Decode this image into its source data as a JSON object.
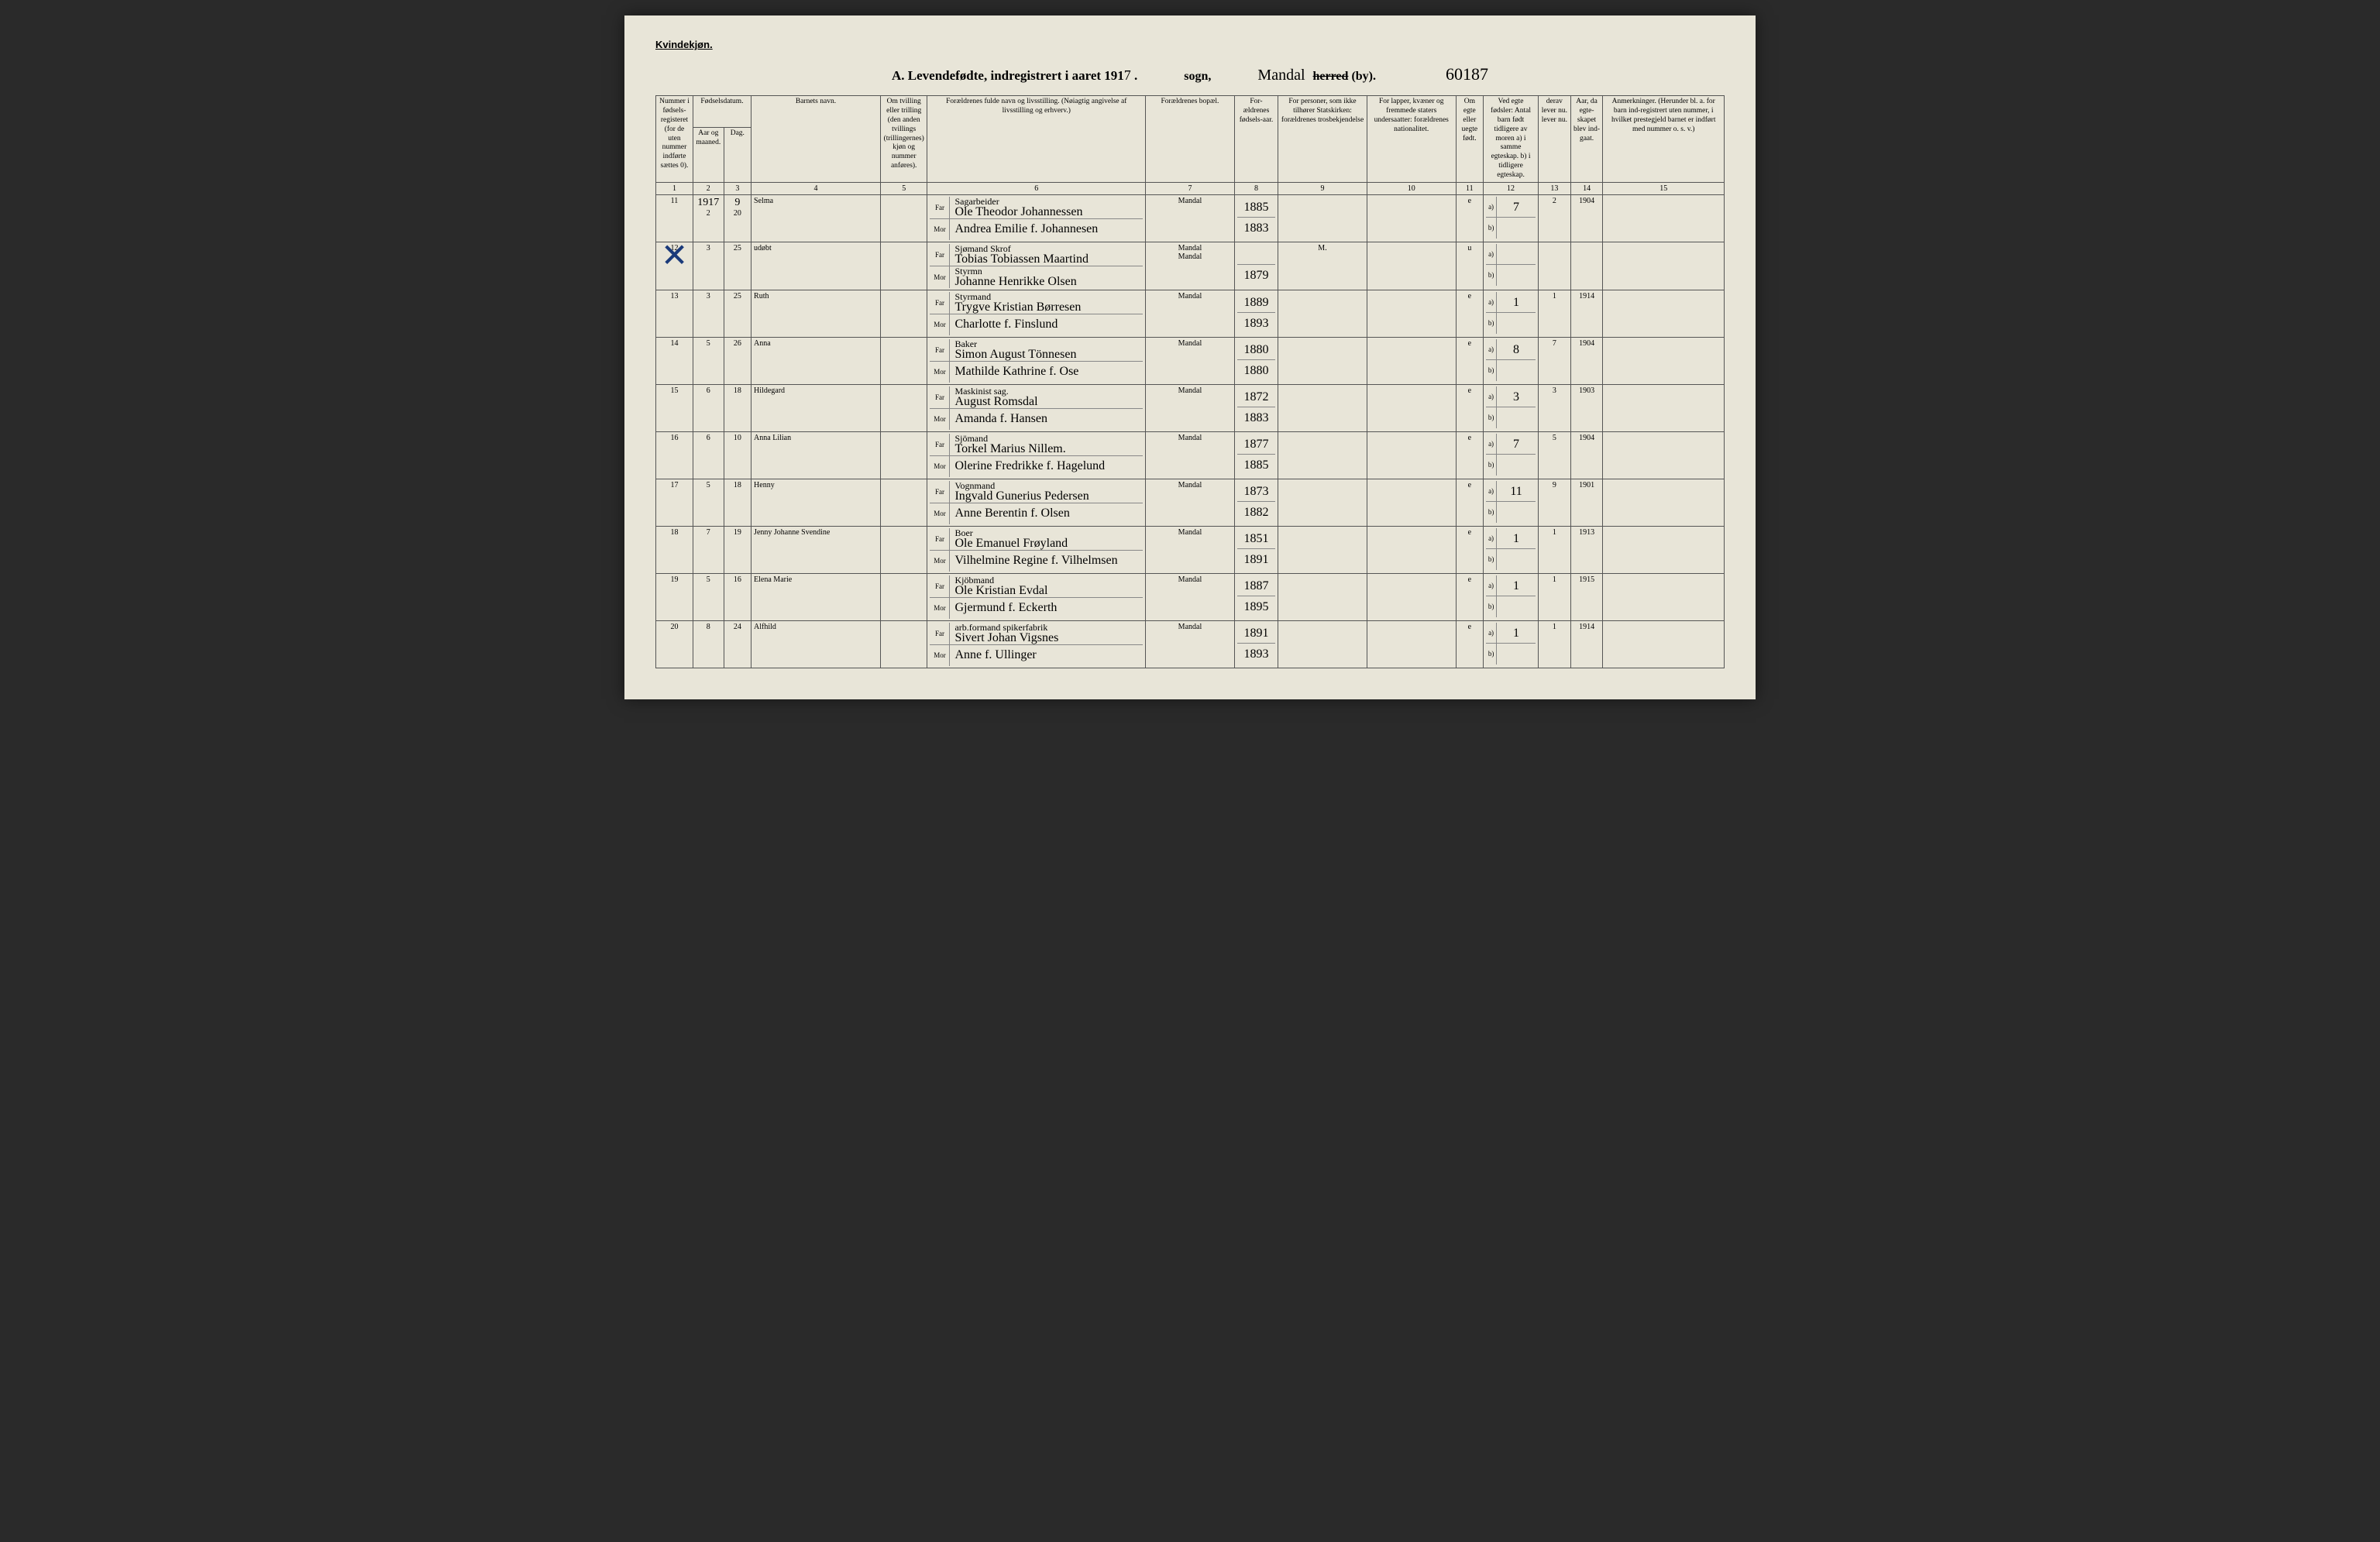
{
  "header": {
    "gender": "Kvindekjøn.",
    "title_prefix": "A.  Levendefødte, indregistrert i aaret 191",
    "title_year_suffix": "7",
    "sogn_label": "sogn,",
    "herred_handwritten": "Mandal",
    "herred_label_struck": "herred",
    "herred_label_rest": " (by).",
    "page_number": "60187"
  },
  "columns": {
    "c1": "Nummer i fødsels-registeret (for de uten nummer indførte sættes 0).",
    "c2_top": "Fødselsdatum.",
    "c2": "Aar og maaned.",
    "c3": "Dag.",
    "c4": "Barnets navn.",
    "c5": "Om tvilling eller trilling (den anden tvillings (trillingernes) kjøn og nummer anføres).",
    "c6": "Forældrenes fulde navn og livsstilling. (Nøiagtig angivelse af livsstilling og erhverv.)",
    "c7": "Forældrenes bopæl.",
    "c8": "For-ældrenes fødsels-aar.",
    "c9": "For personer, som ikke tilhører Statskirken: forældrenes trosbekjendelse",
    "c10": "For lapper, kvæner og fremmede staters undersaatter: forældrenes nationalitet.",
    "c11": "Om egte eller uegte født.",
    "c12": "Ved egte fødsler: Antal barn født tidligere av moren  a) i samme egteskap.  b) i tidligere egteskap.",
    "c13": "derav lever nu.  lever nu.",
    "c14": "Aar, da egte-skapet blev ind-gaat.",
    "c15": "Anmerkninger. (Herunder bl. a. for barn ind-registrert uten nummer, i hvilket prestegjeld barnet er indført med nummer o. s. v.)",
    "far": "Far",
    "mor": "Mor",
    "a": "a)",
    "b": "b)"
  },
  "colnums": [
    "1",
    "2",
    "3",
    "4",
    "5",
    "6",
    "7",
    "8",
    "9",
    "10",
    "11",
    "12",
    "13",
    "14",
    "15"
  ],
  "rows": [
    {
      "num": "11",
      "year_top": "1917",
      "month": "2",
      "day_top": "9",
      "day": "20",
      "name": "Selma",
      "twin": "",
      "far_occ": "Sagarbeider",
      "far_name": "Ole Theodor Johannessen",
      "mor_name": "Andrea Emilie f. Johannesen",
      "bopael": "Mandal",
      "far_year": "1885",
      "mor_year": "1883",
      "stat": "",
      "nat": "",
      "egte": "e",
      "antal_a": "7",
      "derav": "2",
      "aar14": "1904",
      "anm": ""
    },
    {
      "num": "12",
      "month": "3",
      "day": "25",
      "name": "udøbt",
      "twin": "",
      "far_occ": "Sjømand Skrof",
      "far_name": "Tobias Tobiassen Maartind",
      "mor_occ": "Styrmn",
      "mor_name": "Johanne Henrikke Olsen",
      "bopael": "Mandal",
      "bopael2": "Mandal",
      "far_year": "",
      "mor_year": "1879",
      "stat": "M.",
      "nat": "",
      "egte": "u",
      "antal_a": "",
      "derav": "",
      "aar14": "",
      "anm": "",
      "cross": true
    },
    {
      "num": "13",
      "month": "3",
      "day": "25",
      "name": "Ruth",
      "twin": "",
      "far_occ": "Styrmand",
      "far_name": "Trygve Kristian Børresen",
      "mor_name": "Charlotte f. Finslund",
      "bopael": "Mandal",
      "far_year": "1889",
      "mor_year": "1893",
      "stat": "",
      "nat": "",
      "egte": "e",
      "antal_a": "1",
      "derav": "1",
      "aar14": "1914",
      "anm": ""
    },
    {
      "num": "14",
      "month": "5",
      "day": "26",
      "name": "Anna",
      "twin": "",
      "far_occ": "Baker",
      "far_name": "Simon August Tönnesen",
      "mor_name": "Mathilde Kathrine f. Ose",
      "bopael": "Mandal",
      "far_year": "1880",
      "mor_year": "1880",
      "stat": "",
      "nat": "",
      "egte": "e",
      "antal_a": "8",
      "derav": "7",
      "aar14": "1904",
      "anm": ""
    },
    {
      "num": "15",
      "month": "6",
      "day": "18",
      "name": "Hildegard",
      "twin": "",
      "far_occ": "Maskinist sag.",
      "far_name": "August Romsdal",
      "mor_name": "Amanda f. Hansen",
      "bopael": "Mandal",
      "far_year": "1872",
      "mor_year": "1883",
      "stat": "",
      "nat": "",
      "egte": "e",
      "antal_a": "3",
      "derav": "3",
      "aar14": "1903",
      "anm": ""
    },
    {
      "num": "16",
      "month": "6",
      "day": "10",
      "name": "Anna Lilian",
      "twin": "",
      "far_occ": "Sjömand",
      "far_name": "Torkel Marius Nillem.",
      "mor_name": "Olerine Fredrikke f. Hagelund",
      "bopael": "Mandal",
      "far_year": "1877",
      "mor_year": "1885",
      "stat": "",
      "nat": "",
      "egte": "e",
      "antal_a": "7",
      "derav": "5",
      "aar14": "1904",
      "anm": ""
    },
    {
      "num": "17",
      "month": "5",
      "day": "18",
      "name": "Henny",
      "twin": "",
      "far_occ": "Vognmand",
      "far_name": "Ingvald Gunerius Pedersen",
      "mor_name": "Anne Berentin f. Olsen",
      "bopael": "Mandal",
      "far_year": "1873",
      "mor_year": "1882",
      "stat": "",
      "nat": "",
      "egte": "e",
      "antal_a": "11",
      "derav": "9",
      "aar14": "1901",
      "anm": ""
    },
    {
      "num": "18",
      "month": "7",
      "day": "19",
      "name": "Jenny Johanne Svendine",
      "twin": "",
      "far_occ": "Boer",
      "far_name": "Ole Emanuel Frøyland",
      "mor_name": "Vilhelmine Regine f. Vilhelmsen",
      "bopael": "Mandal",
      "far_year": "1851",
      "mor_year": "1891",
      "stat": "",
      "nat": "",
      "egte": "e",
      "antal_a": "1",
      "derav": "1",
      "aar14": "1913",
      "anm": ""
    },
    {
      "num": "19",
      "month": "5",
      "day": "16",
      "name": "Elena Marie",
      "twin": "",
      "far_occ": "Kjöbmand",
      "far_name": "Ole Kristian Evdal",
      "mor_name": "Gjermund f. Eckerth",
      "bopael": "Mandal",
      "far_year": "1887",
      "mor_year": "1895",
      "stat": "",
      "nat": "",
      "egte": "e",
      "antal_a": "1",
      "derav": "1",
      "aar14": "1915",
      "anm": ""
    },
    {
      "num": "20",
      "month": "8",
      "day": "24",
      "name": "Alfhild",
      "twin": "",
      "far_occ": "arb.formand spikerfabrik",
      "far_name": "Sivert Johan Vigsnes",
      "mor_name": "Anne f. Ullinger",
      "bopael": "Mandal",
      "far_year": "1891",
      "mor_year": "1893",
      "stat": "",
      "nat": "",
      "egte": "e",
      "antal_a": "1",
      "derav": "1",
      "aar14": "1914",
      "anm": ""
    }
  ],
  "style": {
    "page_bg": "#e8e5d8",
    "ink": "#1a1a1a",
    "blue_ink": "#1a4a9a",
    "border": "#555555"
  }
}
